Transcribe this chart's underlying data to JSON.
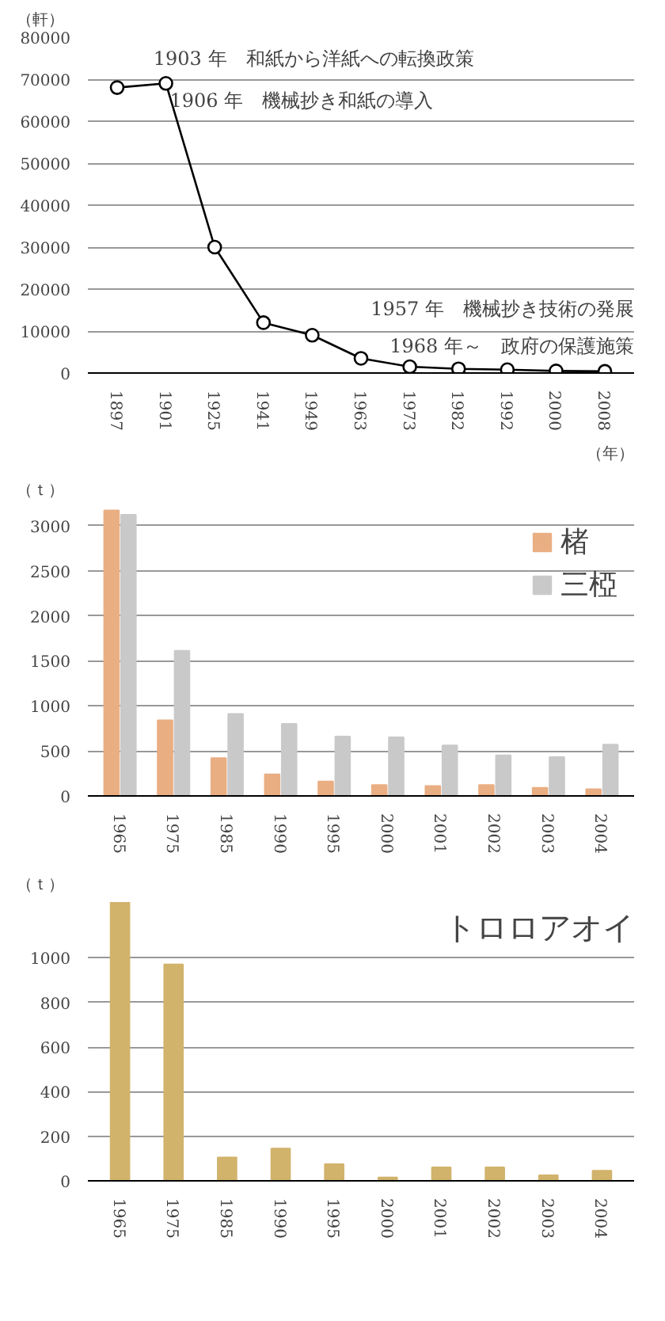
{
  "chart_data": [
    {
      "type": "line",
      "categories": [
        "1897",
        "1901",
        "1925",
        "1941",
        "1949",
        "1963",
        "1973",
        "1982",
        "1992",
        "2000",
        "2008"
      ],
      "values": [
        68000,
        69000,
        30000,
        12000,
        9000,
        3500,
        1500,
        1000,
        800,
        500,
        400
      ],
      "color": "#000000",
      "marker": "circle",
      "ylim": [
        0,
        80000
      ],
      "yticks": [
        0,
        10000,
        20000,
        30000,
        40000,
        50000,
        60000,
        70000,
        80000
      ],
      "grid": "y",
      "ylabel": "（軒）",
      "xlabel": "（年）",
      "annotations": [
        "1903 年　和紙から洋紙への転換政策",
        "1906 年　機械抄き和紙の導入",
        "1957 年　機械抄き技術の発展",
        "1968 年～　政府の保護施策"
      ]
    },
    {
      "type": "bar",
      "categories": [
        "1965",
        "1975",
        "1985",
        "1990",
        "1995",
        "2000",
        "2001",
        "2002",
        "2003",
        "2004"
      ],
      "ylim": [
        0,
        3200
      ],
      "yticks": [
        0,
        500,
        1000,
        1500,
        2000,
        2500,
        3000
      ],
      "grid": "y",
      "ylabel": "（ｔ）",
      "legend": "top right",
      "series": [
        {
          "name": "楮",
          "color": "#eaae83",
          "values": [
            3170,
            840,
            420,
            240,
            160,
            120,
            110,
            120,
            90,
            75
          ]
        },
        {
          "name": "三椏",
          "color": "#c9c9c9",
          "values": [
            3120,
            1610,
            910,
            800,
            660,
            650,
            560,
            450,
            430,
            570
          ]
        }
      ]
    },
    {
      "type": "bar",
      "title": "トロロアオイ",
      "categories": [
        "1965",
        "1975",
        "1985",
        "1990",
        "1995",
        "2000",
        "2001",
        "2002",
        "2003",
        "2004"
      ],
      "values": [
        1250,
        970,
        105,
        145,
        75,
        15,
        60,
        60,
        25,
        45
      ],
      "color": "#d2b36c",
      "ylim": [
        0,
        1250
      ],
      "yticks": [
        0,
        200,
        400,
        600,
        800,
        1000
      ],
      "grid": "y",
      "ylabel": "（ｔ）"
    }
  ]
}
